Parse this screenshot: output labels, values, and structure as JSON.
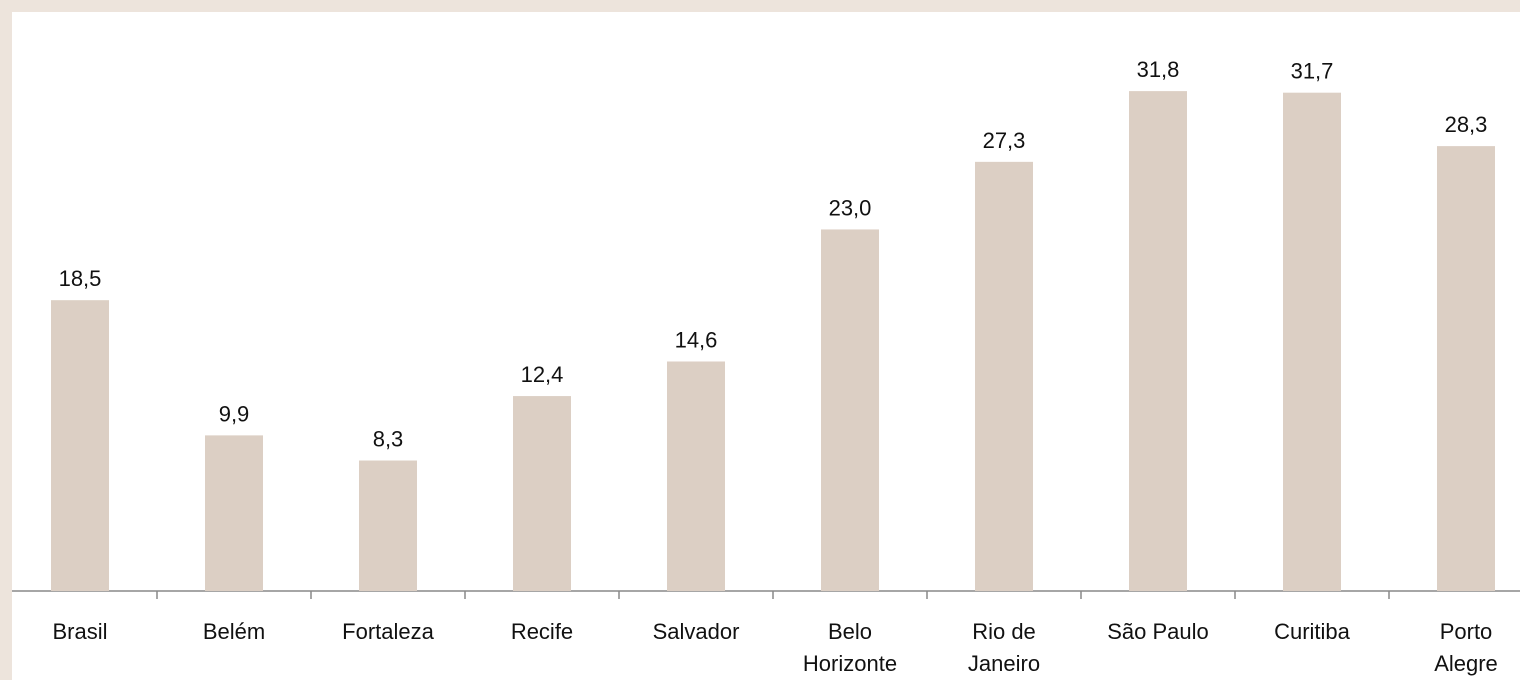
{
  "chart_data": {
    "type": "bar",
    "categories": [
      "Brasil",
      "Belém",
      "Fortaleza",
      "Recife",
      "Salvador",
      "Belo\nHorizonte",
      "Rio de\nJaneiro",
      "São Paulo",
      "Curitiba",
      "Porto\nAlegre"
    ],
    "values": [
      18.5,
      9.9,
      8.3,
      12.4,
      14.6,
      23.0,
      27.3,
      31.8,
      31.7,
      28.3
    ],
    "value_labels": [
      "18,5",
      "9,9",
      "8,3",
      "12,4",
      "14,6",
      "23,0",
      "27,3",
      "31,8",
      "31,7",
      "28,3"
    ],
    "color": "#dccfc4"
  }
}
